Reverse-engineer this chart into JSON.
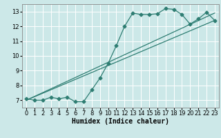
{
  "title": "",
  "xlabel": "Humidex (Indice chaleur)",
  "ylabel": "",
  "bg_color": "#cce8e8",
  "line_color": "#2e7d72",
  "grid_color": "#ffffff",
  "x_data": [
    0,
    1,
    2,
    3,
    4,
    5,
    6,
    7,
    8,
    9,
    10,
    11,
    12,
    13,
    14,
    15,
    16,
    17,
    18,
    19,
    20,
    21,
    22,
    23
  ],
  "y_series1": [
    7.1,
    7.0,
    7.0,
    7.2,
    7.1,
    7.2,
    6.9,
    6.9,
    7.7,
    8.5,
    9.5,
    10.7,
    12.0,
    12.9,
    12.8,
    12.8,
    12.85,
    13.2,
    13.15,
    12.8,
    12.15,
    12.5,
    12.95,
    12.4
  ],
  "y_line1_start": 7.0,
  "y_line1_end": 12.9,
  "y_line2_start": 7.0,
  "y_line2_end": 12.4,
  "ylim": [
    6.5,
    13.5
  ],
  "xlim": [
    -0.5,
    23.5
  ],
  "yticks": [
    7,
    8,
    9,
    10,
    11,
    12,
    13
  ],
  "xticks": [
    0,
    1,
    2,
    3,
    4,
    5,
    6,
    7,
    8,
    9,
    10,
    11,
    12,
    13,
    14,
    15,
    16,
    17,
    18,
    19,
    20,
    21,
    22,
    23
  ],
  "font_size": 6,
  "marker_size": 2.5
}
